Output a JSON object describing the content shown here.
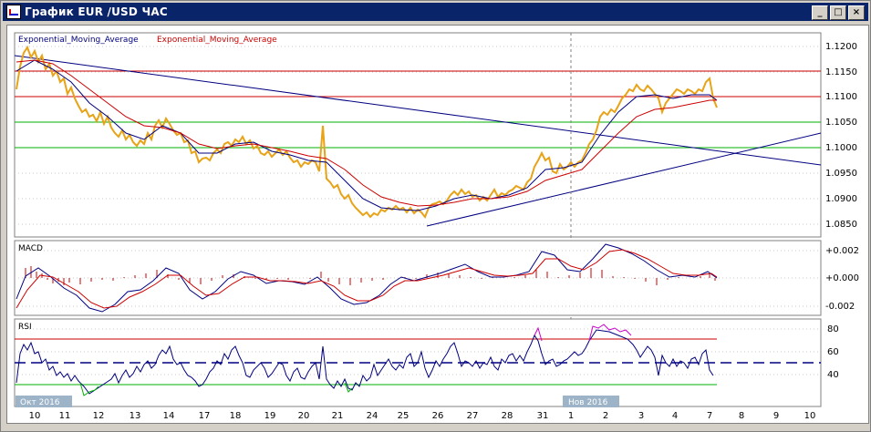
{
  "window": {
    "title": "График EUR /USD  ЧАС",
    "minimize_glyph": "_",
    "restore_glyph": "□",
    "close_glyph": "×"
  },
  "main_panel": {
    "legend_1": "Exponential_Moving_Average",
    "legend_1_color": "#000080",
    "legend_2": "Exponential_Moving_Average",
    "legend_2_color": "#cc0000",
    "y_ticks": [
      "1.1200",
      "1.1150",
      "1.1100",
      "1.1050",
      "1.1000",
      "1.0950",
      "1.0900",
      "1.0850"
    ],
    "price_color": "#e8a317"
  },
  "macd_panel": {
    "label": "MACD",
    "y_ticks": [
      "+0.002",
      "+0.000",
      "-0.002"
    ]
  },
  "rsi_panel": {
    "label": "RSI",
    "y_ticks": [
      "80",
      "60",
      "40"
    ]
  },
  "x_axis": {
    "labels": [
      "10",
      "11",
      "12",
      "13",
      "14",
      "17",
      "18",
      "19",
      "20",
      "21",
      "24",
      "25",
      "26",
      "27",
      "28",
      "31",
      "1",
      "2",
      "3",
      "4",
      "7",
      "8",
      "9",
      "10"
    ],
    "month_label_1": "Окт 2016",
    "month_label_2": "Нов 2016"
  }
}
